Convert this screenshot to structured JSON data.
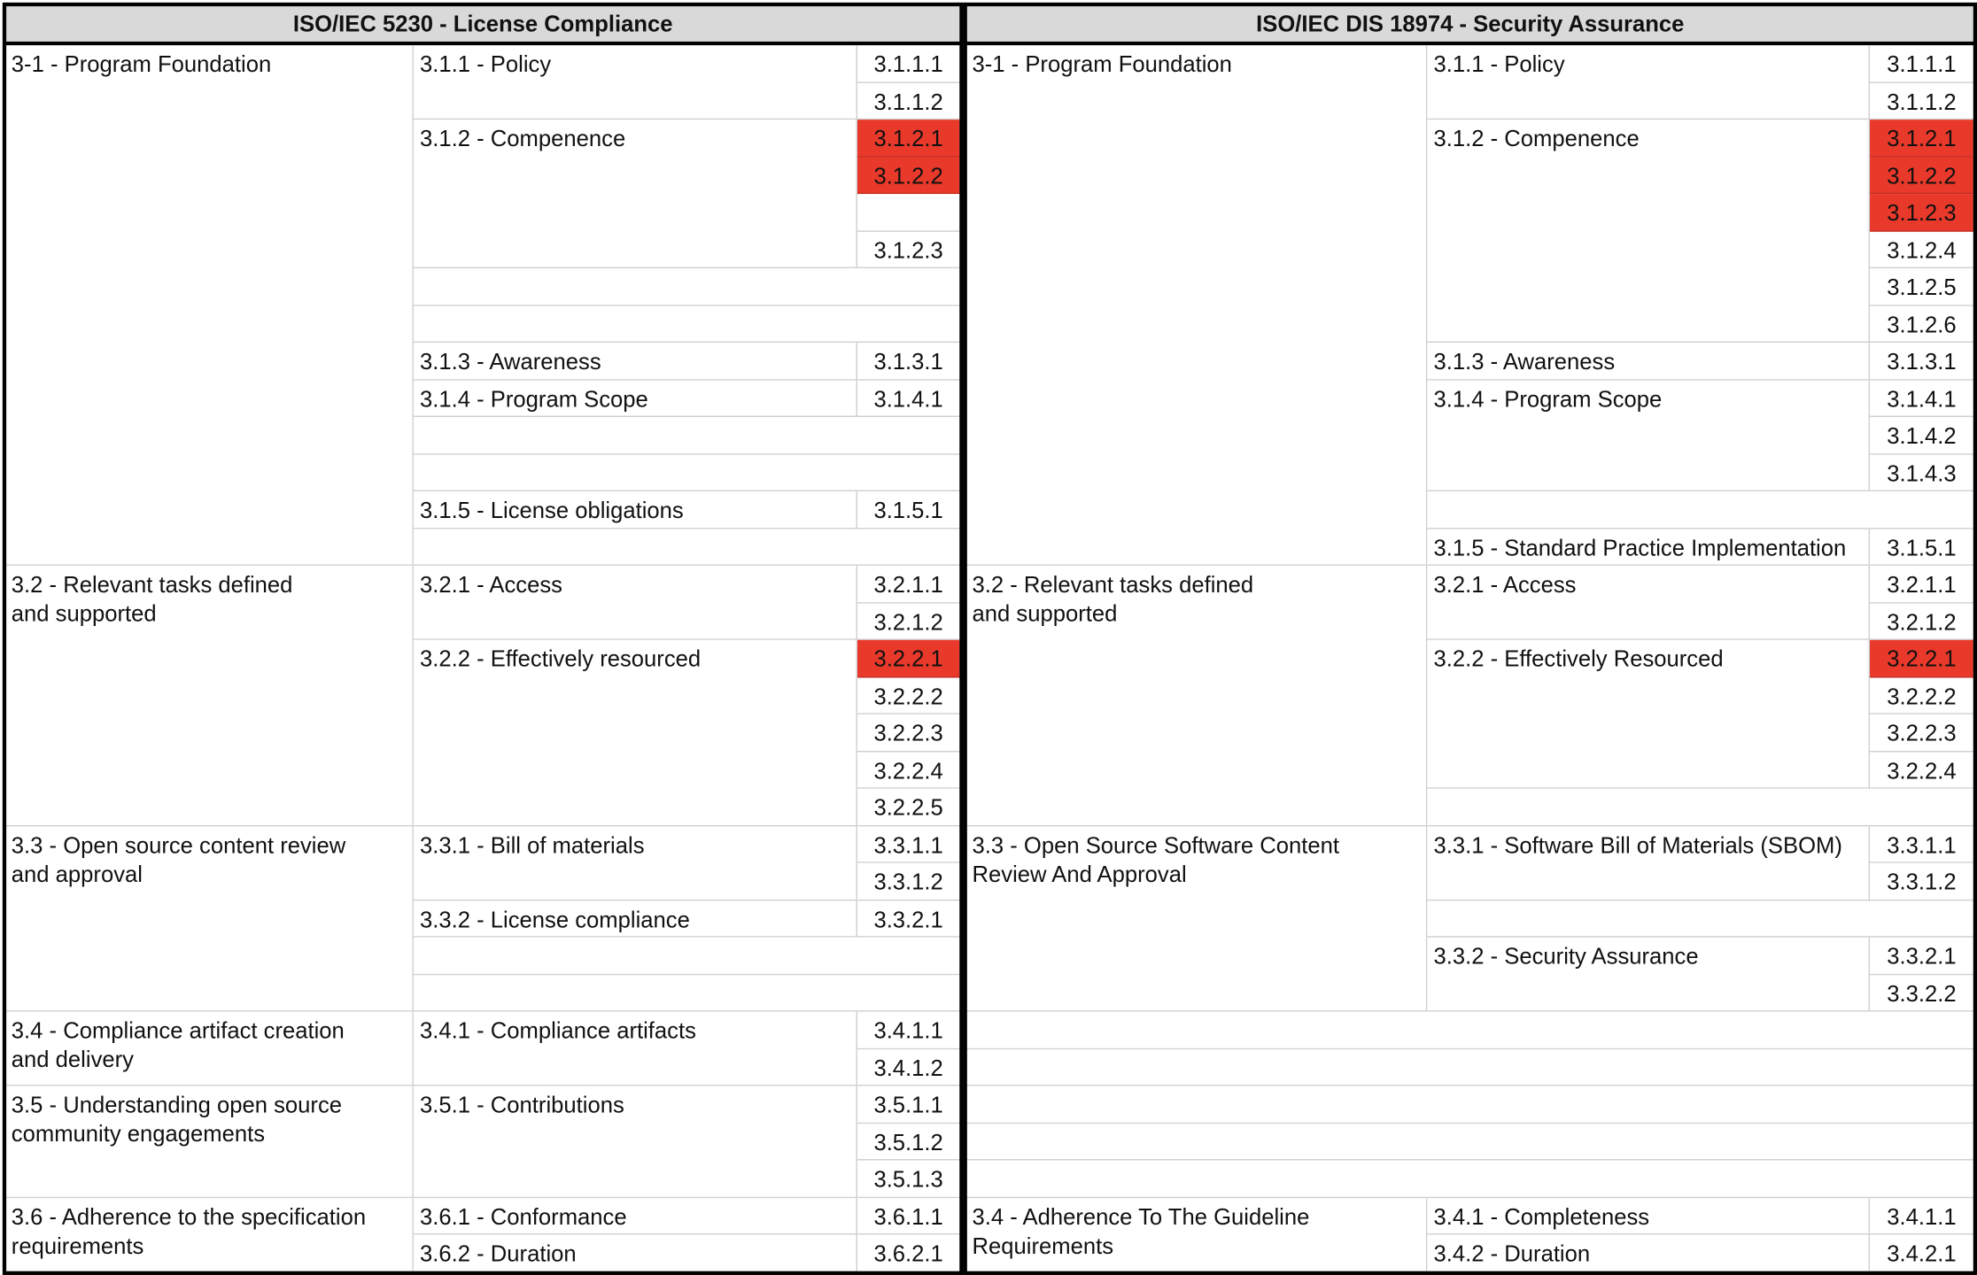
{
  "tables": [
    {
      "title": "ISO/IEC 5230 - License Compliance",
      "sections": [
        {
          "title": "3-1 - Program Foundation",
          "subsections": [
            {
              "title": "3.1.1 - Policy",
              "items": [
                {
                  "label": "3.1.1.1"
                },
                {
                  "label": "3.1.1.2"
                }
              ]
            },
            {
              "title": "3.1.2 - Compenence",
              "items": [
                {
                  "label": "3.1.2.1",
                  "highlighted": true
                },
                {
                  "label": "3.1.2.2",
                  "highlighted": true
                },
                {
                  "label": "3.1.2.3"
                }
              ]
            },
            {
              "title": "3.1.3 - Awareness",
              "items": [
                {
                  "label": "3.1.3.1"
                }
              ]
            },
            {
              "title": "3.1.4 - Program Scope",
              "items": [
                {
                  "label": "3.1.4.1"
                }
              ]
            },
            {
              "title": "3.1.5 - License obligations",
              "items": [
                {
                  "label": "3.1.5.1"
                }
              ]
            }
          ]
        },
        {
          "title": "3.2 - Relevant tasks defined\nand supported",
          "subsections": [
            {
              "title": "3.2.1 - Access",
              "items": [
                {
                  "label": "3.2.1.1"
                },
                {
                  "label": "3.2.1.2"
                }
              ]
            },
            {
              "title": "3.2.2 - Effectively resourced",
              "items": [
                {
                  "label": "3.2.2.1",
                  "highlighted": true
                },
                {
                  "label": "3.2.2.2"
                },
                {
                  "label": "3.2.2.3"
                },
                {
                  "label": "3.2.2.4"
                },
                {
                  "label": "3.2.2.5"
                }
              ]
            }
          ]
        },
        {
          "title": "3.3 - Open source content review\nand approval",
          "subsections": [
            {
              "title": "3.3.1 - Bill of materials",
              "items": [
                {
                  "label": "3.3.1.1"
                },
                {
                  "label": "3.3.1.2"
                }
              ]
            },
            {
              "title": "3.3.2 - License compliance",
              "items": [
                {
                  "label": "3.3.2.1"
                }
              ]
            }
          ]
        },
        {
          "title": "3.4 - Compliance artifact creation\nand delivery",
          "subsections": [
            {
              "title": "3.4.1 - Compliance artifacts",
              "items": [
                {
                  "label": "3.4.1.1"
                },
                {
                  "label": "3.4.1.2"
                }
              ]
            }
          ]
        },
        {
          "title": "3.5 - Understanding open source\ncommunity engagements",
          "subsections": [
            {
              "title": "3.5.1 - Contributions",
              "items": [
                {
                  "label": "3.5.1.1"
                },
                {
                  "label": "3.5.1.2"
                },
                {
                  "label": "3.5.1.3"
                }
              ]
            }
          ]
        },
        {
          "title": "3.6 - Adherence to the specification\nrequirements",
          "subsections": [
            {
              "title": "3.6.1 - Conformance",
              "items": [
                {
                  "label": "3.6.1.1"
                }
              ]
            },
            {
              "title": "3.6.2 - Duration",
              "items": [
                {
                  "label": "3.6.2.1"
                }
              ]
            }
          ]
        }
      ]
    },
    {
      "title": "ISO/IEC DIS 18974 - Security Assurance",
      "sections": [
        {
          "title": "3-1 - Program Foundation",
          "subsections": [
            {
              "title": "3.1.1 - Policy",
              "items": [
                {
                  "label": "3.1.1.1"
                },
                {
                  "label": "3.1.1.2"
                }
              ]
            },
            {
              "title": "3.1.2 - Compenence",
              "items": [
                {
                  "label": "3.1.2.1",
                  "highlighted": true
                },
                {
                  "label": "3.1.2.2",
                  "highlighted": true
                },
                {
                  "label": "3.1.2.3",
                  "highlighted": true
                },
                {
                  "label": "3.1.2.4"
                },
                {
                  "label": "3.1.2.5"
                },
                {
                  "label": "3.1.2.6"
                }
              ]
            },
            {
              "title": "3.1.3 - Awareness",
              "items": [
                {
                  "label": "3.1.3.1"
                }
              ]
            },
            {
              "title": "3.1.4 - Program Scope",
              "items": [
                {
                  "label": "3.1.4.1"
                },
                {
                  "label": "3.1.4.2"
                },
                {
                  "label": "3.1.4.3"
                }
              ]
            },
            {
              "title": "3.1.5 - Standard Practice Implementation",
              "items": [
                {
                  "label": "3.1.5.1"
                }
              ]
            }
          ]
        },
        {
          "title": "3.2 - Relevant tasks defined\nand supported",
          "subsections": [
            {
              "title": "3.2.1 - Access",
              "items": [
                {
                  "label": "3.2.1.1"
                },
                {
                  "label": "3.2.1.2"
                }
              ]
            },
            {
              "title": "3.2.2 - Effectively Resourced",
              "items": [
                {
                  "label": "3.2.2.1",
                  "highlighted": true
                },
                {
                  "label": "3.2.2.2"
                },
                {
                  "label": "3.2.2.3"
                },
                {
                  "label": "3.2.2.4"
                }
              ]
            }
          ]
        },
        {
          "title": "3.3 - Open Source Software Content\nReview And Approval",
          "subsections": [
            {
              "title": "3.3.1 - Software Bill of Materials (SBOM)",
              "items": [
                {
                  "label": "3.3.1.1"
                },
                {
                  "label": "3.3.1.2"
                }
              ]
            },
            {
              "title": "3.3.2 - Security Assurance",
              "items": [
                {
                  "label": "3.3.2.1"
                },
                {
                  "label": "3.3.2.2"
                }
              ]
            }
          ]
        },
        {
          "title": "3.4 - Adherence To The Guideline\nRequirements",
          "subsections": [
            {
              "title": "3.4.1 - Completeness",
              "items": [
                {
                  "label": "3.4.1.1"
                }
              ]
            },
            {
              "title": "3.4.2 - Duration",
              "items": [
                {
                  "label": "3.4.2.1"
                }
              ]
            }
          ]
        }
      ]
    }
  ]
}
